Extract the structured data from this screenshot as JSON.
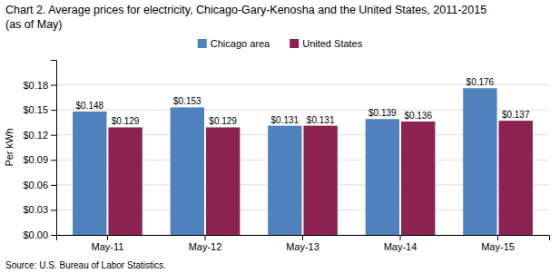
{
  "chart_data": {
    "type": "bar",
    "title": "Chart 2. Average prices for electricity, Chicago-Gary-Kenosha  and the United States, 2011-2015",
    "subtitle": "(as of May)",
    "ylabel": "Per kWh",
    "source": "Source: U.S. Bureau of Labor Statistics.",
    "categories": [
      "May-11",
      "May-12",
      "May-13",
      "May-14",
      "May-15"
    ],
    "series": [
      {
        "name": "Chicago area",
        "color": "#4F81BD",
        "values": [
          0.148,
          0.153,
          0.131,
          0.139,
          0.176
        ],
        "value_labels": [
          "$0.148",
          "$0.153",
          "$0.131",
          "$0.139",
          "$0.176"
        ]
      },
      {
        "name": "United States",
        "color": "#8B2252",
        "values": [
          0.129,
          0.129,
          0.131,
          0.136,
          0.137
        ],
        "value_labels": [
          "$0.129",
          "$0.129",
          "$0.131",
          "$0.136",
          "$0.137"
        ]
      }
    ],
    "ylim": [
      0,
      0.21
    ],
    "yticks": [
      {
        "value": 0.0,
        "label": "$0.00"
      },
      {
        "value": 0.03,
        "label": "$0.03"
      },
      {
        "value": 0.06,
        "label": "$0.06"
      },
      {
        "value": 0.09,
        "label": "$0.09"
      },
      {
        "value": 0.12,
        "label": "$0.12"
      },
      {
        "value": 0.15,
        "label": "$0.15"
      },
      {
        "value": 0.18,
        "label": "$0.18"
      }
    ],
    "grid": true,
    "legend": "top",
    "data_labels": true
  }
}
